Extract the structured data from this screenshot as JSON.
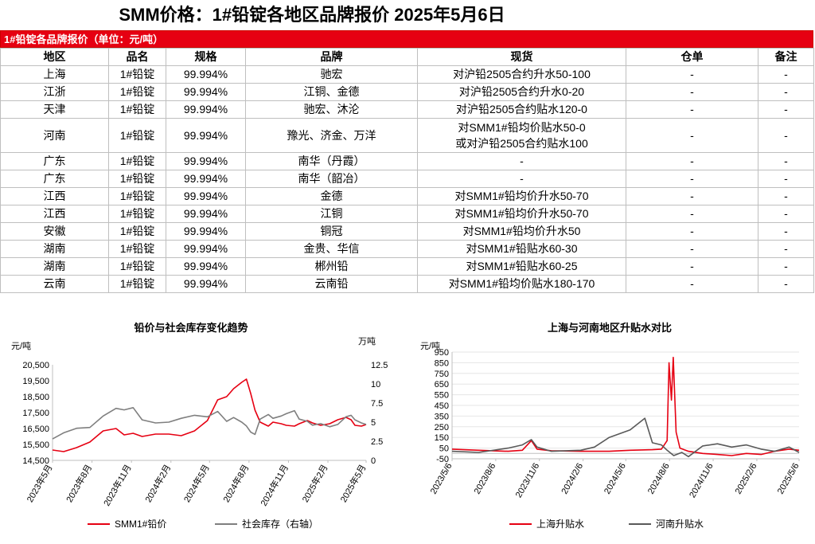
{
  "header": {
    "title": "SMM价格：1#铅锭各地区品牌报价 2025年5月6日",
    "banner": "1#铅锭各品牌报价（单位：元/吨）"
  },
  "table": {
    "columns": [
      "地区",
      "品名",
      "规格",
      "品牌",
      "现货",
      "仓单",
      "备注"
    ],
    "rows": [
      {
        "region": "上海",
        "product": "1#铅锭",
        "spec": "99.994%",
        "brand": "驰宏",
        "spot": [
          "对沪铅2505合约升水50-100"
        ],
        "warrant": "-",
        "note": "-"
      },
      {
        "region": "江浙",
        "product": "1#铅锭",
        "spec": "99.994%",
        "brand": "江铜、金德",
        "spot": [
          "对沪铅2505合约升水0-20"
        ],
        "warrant": "-",
        "note": "-"
      },
      {
        "region": "天津",
        "product": "1#铅锭",
        "spec": "99.994%",
        "brand": "驰宏、沐沦",
        "spot": [
          "对沪铅2505合约贴水120-0"
        ],
        "warrant": "-",
        "note": "-"
      },
      {
        "region": "河南",
        "product": "1#铅锭",
        "spec": "99.994%",
        "brand": "豫光、济金、万洋",
        "spot": [
          "对SMM1#铅均价贴水50-0",
          "或对沪铅2505合约贴水100"
        ],
        "warrant": "-",
        "note": "-"
      },
      {
        "region": "广东",
        "product": "1#铅锭",
        "spec": "99.994%",
        "brand": "南华（丹霞）",
        "spot": [
          "-"
        ],
        "warrant": "-",
        "note": "-"
      },
      {
        "region": "广东",
        "product": "1#铅锭",
        "spec": "99.994%",
        "brand": "南华（韶冶）",
        "spot": [
          "-"
        ],
        "warrant": "-",
        "note": "-"
      },
      {
        "region": "江西",
        "product": "1#铅锭",
        "spec": "99.994%",
        "brand": "金德",
        "spot": [
          "对SMM1#铅均价升水50-70"
        ],
        "warrant": "-",
        "note": "-"
      },
      {
        "region": "江西",
        "product": "1#铅锭",
        "spec": "99.994%",
        "brand": "江铜",
        "spot": [
          "对SMM1#铅均价升水50-70"
        ],
        "warrant": "-",
        "note": "-"
      },
      {
        "region": "安徽",
        "product": "1#铅锭",
        "spec": "99.994%",
        "brand": "铜冠",
        "spot": [
          "对SMM1#铅均价升水50"
        ],
        "warrant": "-",
        "note": "-"
      },
      {
        "region": "湖南",
        "product": "1#铅锭",
        "spec": "99.994%",
        "brand": "金贵、华信",
        "spot": [
          "对SMM1#铅贴水60-30"
        ],
        "warrant": "-",
        "note": "-"
      },
      {
        "region": "湖南",
        "product": "1#铅锭",
        "spec": "99.994%",
        "brand": "郴州铅",
        "spot": [
          "对SMM1#铅贴水60-25"
        ],
        "warrant": "-",
        "note": "-"
      },
      {
        "region": "云南",
        "product": "1#铅锭",
        "spec": "99.994%",
        "brand": "云南铅",
        "spot": [
          "对SMM1#铅均价贴水180-170"
        ],
        "warrant": "-",
        "note": "-"
      }
    ]
  },
  "chart_data": [
    {
      "type": "line",
      "title": "铅价与社会库存变化趋势",
      "ylabel": "元/吨",
      "y2label": "万吨",
      "ylim": [
        14500,
        20500
      ],
      "yticks": [
        14500,
        15500,
        16500,
        17500,
        18500,
        19500,
        20500
      ],
      "yticklabels": [
        "14,500",
        "15,500",
        "16,500",
        "17,500",
        "18,500",
        "19,500",
        "20,500"
      ],
      "y2lim": [
        0,
        12.5
      ],
      "y2ticks": [
        0,
        2.5,
        5,
        7.5,
        10,
        12.5
      ],
      "y2ticklabels": [
        "0",
        "2.5",
        "5",
        "7.5",
        "10",
        "12.5"
      ],
      "xlim": [
        "2023-05-06",
        "2025-05-06"
      ],
      "xticks": [
        "2023-05-06",
        "2023-08-06",
        "2023-11-06",
        "2024-02-06",
        "2024-05-06",
        "2024-08-06",
        "2024-11-06",
        "2025-02-06",
        "2025-05-06"
      ],
      "xticklabels": [
        "2023年5月",
        "2023年8月",
        "2023年11月",
        "2024年2月",
        "2024年5月",
        "2024年8月",
        "2024年11月",
        "2025年2月",
        "2025年5月"
      ],
      "legend_position": "bottom",
      "series": [
        {
          "name": "SMM1#铅价",
          "axis": "left",
          "color": "#e60012",
          "points": [
            [
              "2023-05-06",
              15150
            ],
            [
              "2023-06-01",
              15050
            ],
            [
              "2023-07-01",
              15300
            ],
            [
              "2023-08-01",
              15650
            ],
            [
              "2023-09-01",
              16350
            ],
            [
              "2023-10-01",
              16500
            ],
            [
              "2023-10-20",
              16100
            ],
            [
              "2023-11-10",
              16200
            ],
            [
              "2023-12-01",
              16000
            ],
            [
              "2024-01-01",
              16150
            ],
            [
              "2024-02-01",
              16150
            ],
            [
              "2024-03-01",
              16050
            ],
            [
              "2024-04-01",
              16350
            ],
            [
              "2024-05-01",
              17000
            ],
            [
              "2024-05-25",
              18300
            ],
            [
              "2024-06-15",
              18500
            ],
            [
              "2024-07-01",
              19000
            ],
            [
              "2024-07-20",
              19400
            ],
            [
              "2024-07-31",
              19600
            ],
            [
              "2024-08-10",
              18700
            ],
            [
              "2024-08-20",
              17650
            ],
            [
              "2024-09-01",
              16900
            ],
            [
              "2024-09-20",
              16650
            ],
            [
              "2024-10-01",
              16900
            ],
            [
              "2024-10-20",
              16800
            ],
            [
              "2024-11-01",
              16700
            ],
            [
              "2024-11-20",
              16650
            ],
            [
              "2024-12-01",
              16800
            ],
            [
              "2024-12-20",
              17000
            ],
            [
              "2025-01-01",
              16850
            ],
            [
              "2025-01-20",
              16700
            ],
            [
              "2025-02-10",
              16800
            ],
            [
              "2025-03-01",
              17050
            ],
            [
              "2025-03-20",
              17200
            ],
            [
              "2025-04-01",
              17050
            ],
            [
              "2025-04-10",
              16700
            ],
            [
              "2025-04-25",
              16650
            ],
            [
              "2025-05-06",
              16750
            ]
          ]
        },
        {
          "name": "社会库存（右轴）",
          "axis": "right",
          "color": "#7f7f7f",
          "points": [
            [
              "2023-05-06",
              2.8
            ],
            [
              "2023-06-01",
              3.6
            ],
            [
              "2023-07-01",
              4.2
            ],
            [
              "2023-08-01",
              4.3
            ],
            [
              "2023-09-01",
              5.8
            ],
            [
              "2023-10-01",
              6.8
            ],
            [
              "2023-10-20",
              6.6
            ],
            [
              "2023-11-10",
              6.9
            ],
            [
              "2023-12-01",
              5.3
            ],
            [
              "2024-01-01",
              4.9
            ],
            [
              "2024-02-01",
              5.0
            ],
            [
              "2024-03-01",
              5.5
            ],
            [
              "2024-04-01",
              5.9
            ],
            [
              "2024-05-01",
              5.7
            ],
            [
              "2024-05-25",
              6.4
            ],
            [
              "2024-06-15",
              5.1
            ],
            [
              "2024-07-01",
              5.6
            ],
            [
              "2024-07-20",
              5.0
            ],
            [
              "2024-07-31",
              4.5
            ],
            [
              "2024-08-10",
              3.7
            ],
            [
              "2024-08-20",
              3.4
            ],
            [
              "2024-09-01",
              5.4
            ],
            [
              "2024-09-20",
              6.0
            ],
            [
              "2024-10-01",
              5.5
            ],
            [
              "2024-10-20",
              5.8
            ],
            [
              "2024-11-01",
              6.1
            ],
            [
              "2024-11-20",
              6.5
            ],
            [
              "2024-12-01",
              5.4
            ],
            [
              "2024-12-20",
              5.1
            ],
            [
              "2025-01-01",
              4.6
            ],
            [
              "2025-01-20",
              4.8
            ],
            [
              "2025-02-10",
              4.4
            ],
            [
              "2025-03-01",
              4.7
            ],
            [
              "2025-03-20",
              5.7
            ],
            [
              "2025-04-01",
              5.9
            ],
            [
              "2025-04-10",
              5.3
            ],
            [
              "2025-04-25",
              4.9
            ],
            [
              "2025-05-06",
              4.7
            ]
          ]
        }
      ]
    },
    {
      "type": "line",
      "title": "上海与河南地区升贴水对比",
      "ylabel": "元/吨",
      "ylim": [
        -50,
        950
      ],
      "yticks": [
        -50,
        50,
        150,
        250,
        350,
        450,
        550,
        650,
        750,
        850,
        950
      ],
      "yticklabels": [
        "-50",
        "50",
        "150",
        "250",
        "350",
        "450",
        "550",
        "650",
        "750",
        "850",
        "950"
      ],
      "xlim": [
        "2023-05-06",
        "2025-05-06"
      ],
      "xticks": [
        "2023-05-06",
        "2023-08-06",
        "2023-11-06",
        "2024-02-06",
        "2024-05-06",
        "2024-08-06",
        "2024-11-06",
        "2025-02-06",
        "2025-05-06"
      ],
      "xticklabels": [
        "2023/5/6",
        "2023/8/6",
        "2023/11/6",
        "2024/2/6",
        "2024/5/6",
        "2024/8/6",
        "2024/11/6",
        "2025/2/6",
        "2025/5/6"
      ],
      "legend_position": "bottom",
      "series": [
        {
          "name": "上海升贴水",
          "color": "#e60012",
          "points": [
            [
              "2023-05-06",
              40
            ],
            [
              "2023-07-01",
              30
            ],
            [
              "2023-09-01",
              20
            ],
            [
              "2023-10-01",
              30
            ],
            [
              "2023-10-20",
              120
            ],
            [
              "2023-11-01",
              40
            ],
            [
              "2023-12-01",
              25
            ],
            [
              "2024-02-01",
              20
            ],
            [
              "2024-04-01",
              20
            ],
            [
              "2024-05-15",
              30
            ],
            [
              "2024-07-01",
              35
            ],
            [
              "2024-07-20",
              40
            ],
            [
              "2024-08-01",
              120
            ],
            [
              "2024-08-05",
              850
            ],
            [
              "2024-08-10",
              500
            ],
            [
              "2024-08-14",
              900
            ],
            [
              "2024-08-20",
              200
            ],
            [
              "2024-08-28",
              50
            ],
            [
              "2024-09-15",
              20
            ],
            [
              "2024-10-15",
              0
            ],
            [
              "2024-11-15",
              -10
            ],
            [
              "2024-12-15",
              -20
            ],
            [
              "2025-01-15",
              0
            ],
            [
              "2025-02-15",
              -10
            ],
            [
              "2025-03-15",
              20
            ],
            [
              "2025-04-15",
              40
            ],
            [
              "2025-05-06",
              30
            ]
          ]
        },
        {
          "name": "河南升贴水",
          "color": "#595959",
          "points": [
            [
              "2023-05-06",
              20
            ],
            [
              "2023-07-01",
              10
            ],
            [
              "2023-09-01",
              50
            ],
            [
              "2023-10-01",
              80
            ],
            [
              "2023-10-20",
              130
            ],
            [
              "2023-11-01",
              60
            ],
            [
              "2023-12-01",
              20
            ],
            [
              "2024-02-01",
              30
            ],
            [
              "2024-03-01",
              60
            ],
            [
              "2024-04-01",
              150
            ],
            [
              "2024-05-15",
              220
            ],
            [
              "2024-06-15",
              330
            ],
            [
              "2024-07-01",
              100
            ],
            [
              "2024-07-20",
              80
            ],
            [
              "2024-08-01",
              30
            ],
            [
              "2024-08-15",
              -20
            ],
            [
              "2024-09-01",
              10
            ],
            [
              "2024-09-15",
              -30
            ],
            [
              "2024-10-15",
              70
            ],
            [
              "2024-11-15",
              90
            ],
            [
              "2024-12-15",
              60
            ],
            [
              "2025-01-15",
              80
            ],
            [
              "2025-02-15",
              40
            ],
            [
              "2025-03-15",
              20
            ],
            [
              "2025-04-15",
              60
            ],
            [
              "2025-05-06",
              10
            ]
          ]
        }
      ]
    }
  ]
}
